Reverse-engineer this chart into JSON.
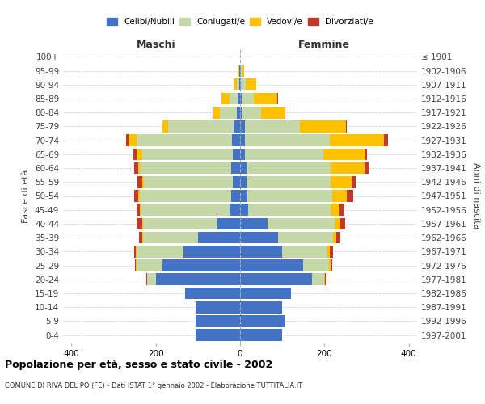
{
  "age_groups": [
    "0-4",
    "5-9",
    "10-14",
    "15-19",
    "20-24",
    "25-29",
    "30-34",
    "35-39",
    "40-44",
    "45-49",
    "50-54",
    "55-59",
    "60-64",
    "65-69",
    "70-74",
    "75-79",
    "80-84",
    "85-89",
    "90-94",
    "95-99",
    "100+"
  ],
  "birth_years": [
    "1997-2001",
    "1992-1996",
    "1987-1991",
    "1982-1986",
    "1977-1981",
    "1972-1976",
    "1967-1971",
    "1962-1966",
    "1957-1961",
    "1952-1956",
    "1947-1951",
    "1942-1946",
    "1937-1941",
    "1932-1936",
    "1927-1931",
    "1922-1926",
    "1917-1921",
    "1912-1916",
    "1907-1911",
    "1902-1906",
    "≤ 1901"
  ],
  "male_celibi": [
    105,
    105,
    105,
    130,
    200,
    185,
    135,
    100,
    55,
    25,
    22,
    18,
    22,
    18,
    20,
    15,
    8,
    5,
    2,
    2,
    0
  ],
  "male_coniugati": [
    0,
    0,
    0,
    0,
    20,
    60,
    110,
    130,
    175,
    210,
    215,
    210,
    215,
    215,
    225,
    155,
    40,
    20,
    5,
    2,
    0
  ],
  "male_vedovi": [
    0,
    0,
    0,
    0,
    0,
    3,
    2,
    2,
    3,
    3,
    5,
    5,
    5,
    12,
    20,
    15,
    15,
    20,
    8,
    2,
    0
  ],
  "male_divorziati": [
    0,
    0,
    0,
    0,
    2,
    2,
    5,
    8,
    12,
    8,
    10,
    10,
    10,
    8,
    5,
    0,
    3,
    0,
    0,
    0,
    0
  ],
  "female_nubili": [
    100,
    105,
    100,
    120,
    170,
    150,
    100,
    90,
    65,
    20,
    18,
    15,
    15,
    12,
    12,
    12,
    5,
    5,
    2,
    2,
    0
  ],
  "female_coniugate": [
    0,
    0,
    0,
    0,
    30,
    60,
    105,
    130,
    160,
    195,
    200,
    200,
    200,
    185,
    200,
    130,
    45,
    28,
    12,
    3,
    0
  ],
  "female_vedove": [
    0,
    0,
    0,
    0,
    2,
    5,
    8,
    8,
    12,
    20,
    35,
    50,
    80,
    100,
    130,
    110,
    55,
    55,
    25,
    5,
    0
  ],
  "female_divorziate": [
    0,
    0,
    0,
    0,
    2,
    3,
    8,
    10,
    12,
    12,
    15,
    10,
    10,
    5,
    8,
    2,
    3,
    2,
    0,
    0,
    0
  ],
  "colors": {
    "celibi": "#4472c4",
    "coniugati": "#c5d9a8",
    "vedovi": "#ffc000",
    "divorziati": "#c0392b"
  },
  "title": "Popolazione per età, sesso e stato civile - 2002",
  "subtitle": "COMUNE DI RIVA DEL PO (FE) - Dati ISTAT 1° gennaio 2002 - Elaborazione TUTTITALIA.IT",
  "ylabel": "Fasce di età",
  "ylabel_right": "Anni di nascita",
  "xlabel_left": "Maschi",
  "xlabel_right": "Femmine",
  "xlim": 420,
  "background_color": "#ffffff",
  "grid_color": "#cccccc"
}
